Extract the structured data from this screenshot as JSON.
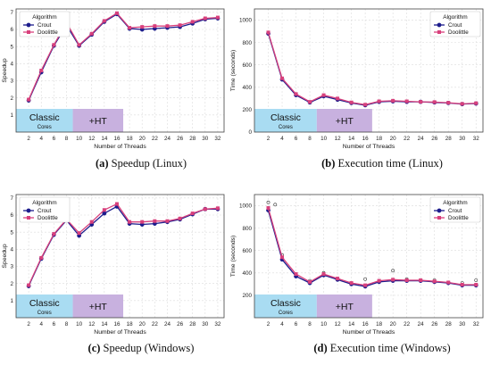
{
  "colors": {
    "crout": "#1c1c8c",
    "doolittle": "#d8407c",
    "classic_band": "#a9dcf2",
    "ht_band": "#c8b1df",
    "grid": "#dcdcdc"
  },
  "bands": {
    "classic_line1": "Classic",
    "classic_line2": "Cores",
    "ht": "+HT"
  },
  "chart_data": [
    {
      "id": "a",
      "type": "line",
      "caption_letter": "(a)",
      "caption_text": " Speedup (Linux)",
      "xlabel": "Number of Threads",
      "ylabel": "Speedup",
      "xlim": [
        0,
        33
      ],
      "ylim": [
        0,
        7.2
      ],
      "xticks": [
        2,
        4,
        6,
        8,
        10,
        12,
        14,
        16,
        18,
        20,
        22,
        24,
        26,
        28,
        30,
        32
      ],
      "yticks": [
        1,
        2,
        3,
        4,
        5,
        6,
        7
      ],
      "band_ranges": {
        "classic": [
          0,
          9
        ],
        "ht": [
          9,
          17
        ]
      },
      "legend_title": "Algorithm",
      "legend_pos": "top-left",
      "x": [
        2,
        4,
        6,
        8,
        10,
        12,
        14,
        16,
        18,
        20,
        22,
        24,
        26,
        28,
        30,
        32
      ],
      "series": [
        {
          "name": "Crout",
          "values": [
            1.85,
            3.5,
            5.05,
            6.25,
            5.05,
            5.7,
            6.45,
            6.9,
            6.05,
            6.0,
            6.05,
            6.1,
            6.15,
            6.35,
            6.6,
            6.65
          ]
        },
        {
          "name": "Doolittle",
          "values": [
            1.9,
            3.6,
            5.1,
            6.4,
            5.1,
            5.75,
            6.5,
            6.95,
            6.1,
            6.15,
            6.2,
            6.2,
            6.25,
            6.45,
            6.65,
            6.7
          ]
        }
      ],
      "outliers": []
    },
    {
      "id": "b",
      "type": "line",
      "caption_letter": "(b)",
      "caption_text": " Execution time (Linux)",
      "xlabel": "Number of Threads",
      "ylabel": "Time (seconds)",
      "xlim": [
        0,
        33
      ],
      "ylim": [
        0,
        1100
      ],
      "xticks": [
        2,
        4,
        6,
        8,
        10,
        12,
        14,
        16,
        18,
        20,
        22,
        24,
        26,
        28,
        30,
        32
      ],
      "yticks": [
        0,
        200,
        400,
        600,
        800,
        1000
      ],
      "band_ranges": {
        "classic": [
          0,
          9
        ],
        "ht": [
          9,
          17
        ]
      },
      "legend_title": "Algorithm",
      "legend_pos": "top-right",
      "x": [
        2,
        4,
        6,
        8,
        10,
        12,
        14,
        16,
        18,
        20,
        22,
        24,
        26,
        28,
        30,
        32
      ],
      "series": [
        {
          "name": "Crout",
          "values": [
            880,
            470,
            330,
            265,
            320,
            290,
            260,
            240,
            270,
            275,
            270,
            270,
            265,
            260,
            250,
            255
          ]
        },
        {
          "name": "Doolittle",
          "values": [
            890,
            480,
            340,
            270,
            330,
            300,
            265,
            245,
            275,
            280,
            275,
            270,
            268,
            262,
            252,
            258
          ]
        }
      ],
      "outliers": []
    },
    {
      "id": "c",
      "type": "line",
      "caption_letter": "(c)",
      "caption_text": " Speedup (Windows)",
      "xlabel": "Number of Threads",
      "ylabel": "Speedup",
      "xlim": [
        0,
        33
      ],
      "ylim": [
        0,
        7.2
      ],
      "xticks": [
        2,
        4,
        6,
        8,
        10,
        12,
        14,
        16,
        18,
        20,
        22,
        24,
        26,
        28,
        30,
        32
      ],
      "yticks": [
        1,
        2,
        3,
        4,
        5,
        6,
        7
      ],
      "band_ranges": {
        "classic": [
          0,
          9
        ],
        "ht": [
          9,
          17
        ]
      },
      "legend_title": "Algorithm",
      "legend_pos": "top-left",
      "x": [
        2,
        4,
        6,
        8,
        10,
        12,
        14,
        16,
        18,
        20,
        22,
        24,
        26,
        28,
        30,
        32
      ],
      "series": [
        {
          "name": "Crout",
          "values": [
            1.85,
            3.45,
            4.85,
            5.7,
            4.8,
            5.45,
            6.1,
            6.5,
            5.5,
            5.45,
            5.5,
            5.6,
            5.75,
            6.05,
            6.35,
            6.35
          ]
        },
        {
          "name": "Doolittle",
          "values": [
            1.9,
            3.5,
            4.9,
            5.75,
            4.95,
            5.6,
            6.3,
            6.65,
            5.6,
            5.6,
            5.65,
            5.65,
            5.8,
            6.1,
            6.35,
            6.4
          ]
        }
      ],
      "outliers": []
    },
    {
      "id": "d",
      "type": "line",
      "caption_letter": "(d)",
      "caption_text": " Execution time (Windows)",
      "xlabel": "Number of Threads",
      "ylabel": "Time (seconds)",
      "xlim": [
        0,
        33
      ],
      "ylim": [
        0,
        1100
      ],
      "xticks": [
        2,
        4,
        6,
        8,
        10,
        12,
        14,
        16,
        18,
        20,
        22,
        24,
        26,
        28,
        30,
        32
      ],
      "yticks": [
        200,
        400,
        600,
        800,
        1000
      ],
      "band_ranges": {
        "classic": [
          0,
          9
        ],
        "ht": [
          9,
          17
        ]
      },
      "legend_title": "Algorithm",
      "legend_pos": "top-right",
      "x": [
        2,
        4,
        6,
        8,
        10,
        12,
        14,
        16,
        18,
        20,
        22,
        24,
        26,
        28,
        30,
        32
      ],
      "series": [
        {
          "name": "Crout",
          "values": [
            960,
            520,
            370,
            310,
            380,
            340,
            300,
            280,
            320,
            330,
            330,
            330,
            320,
            310,
            290,
            290
          ]
        },
        {
          "name": "Doolittle",
          "values": [
            980,
            540,
            390,
            320,
            390,
            350,
            310,
            290,
            330,
            340,
            335,
            335,
            325,
            315,
            295,
            295
          ]
        }
      ],
      "outliers": [
        {
          "x": 2,
          "y": 1030
        },
        {
          "x": 3,
          "y": 1010
        },
        {
          "x": 4,
          "y": 560
        },
        {
          "x": 8,
          "y": 330
        },
        {
          "x": 10,
          "y": 400
        },
        {
          "x": 12,
          "y": 350
        },
        {
          "x": 16,
          "y": 345
        },
        {
          "x": 20,
          "y": 420
        },
        {
          "x": 22,
          "y": 345
        },
        {
          "x": 26,
          "y": 335
        },
        {
          "x": 30,
          "y": 310
        },
        {
          "x": 32,
          "y": 335
        }
      ]
    }
  ]
}
